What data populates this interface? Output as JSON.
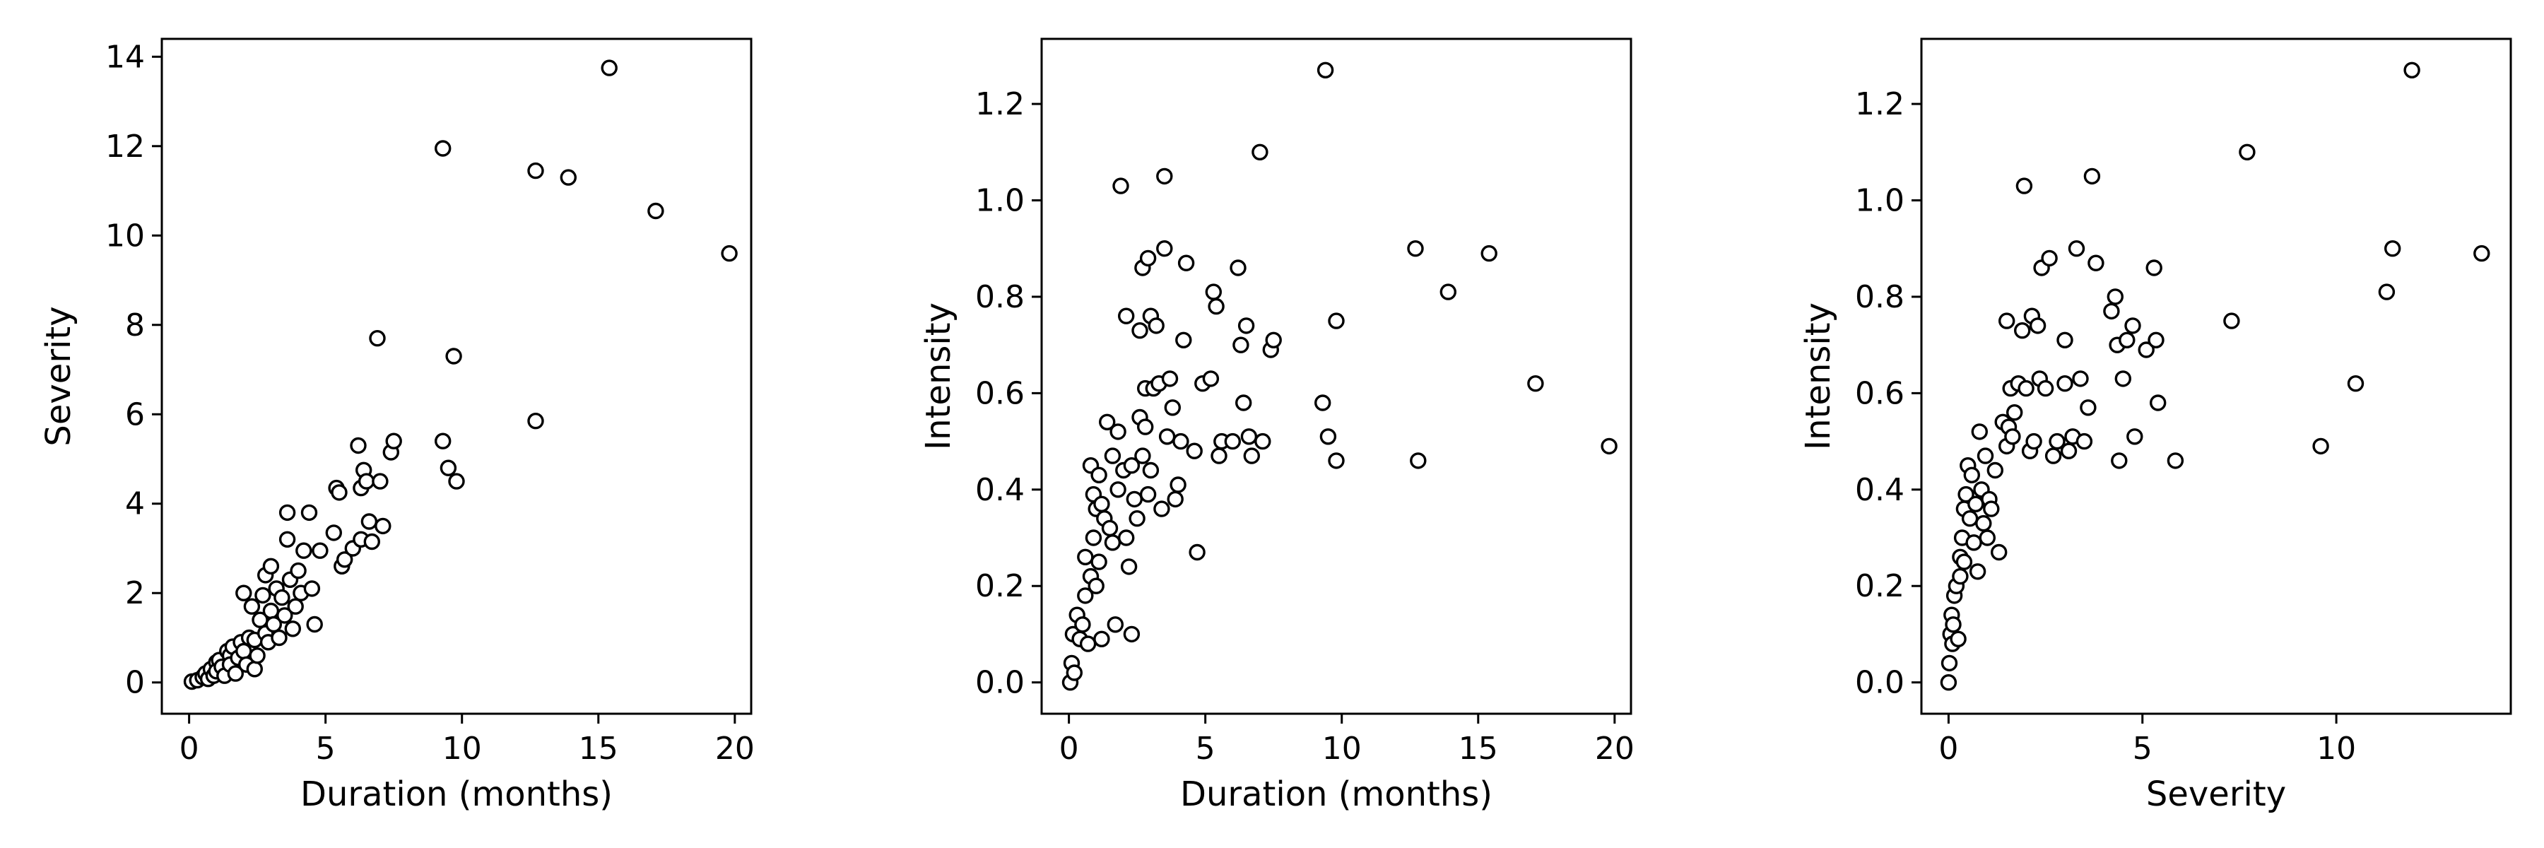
{
  "colors": {
    "marker_edge": "#000000",
    "marker_face": "#ffffff",
    "background": "#ffffff"
  },
  "chart_data": [
    {
      "type": "scatter",
      "title": "",
      "xlabel": "Duration (months)",
      "ylabel": "Severity",
      "xlim": [
        -1,
        20.6
      ],
      "ylim": [
        -0.7,
        14.4
      ],
      "xticks": [
        0,
        5,
        10,
        15,
        20
      ],
      "yticks": [
        0,
        2,
        4,
        6,
        8,
        10,
        12,
        14
      ],
      "grid": false,
      "points": [
        [
          0.1,
          0.02
        ],
        [
          0.3,
          0.05
        ],
        [
          0.5,
          0.12
        ],
        [
          0.6,
          0.2
        ],
        [
          0.7,
          0.08
        ],
        [
          0.8,
          0.3
        ],
        [
          0.9,
          0.15
        ],
        [
          1.0,
          0.45
        ],
        [
          1.0,
          0.25
        ],
        [
          1.1,
          0.5
        ],
        [
          1.2,
          0.35
        ],
        [
          1.3,
          0.15
        ],
        [
          1.4,
          0.7
        ],
        [
          1.5,
          0.6
        ],
        [
          1.5,
          0.4
        ],
        [
          1.6,
          0.8
        ],
        [
          1.7,
          0.2
        ],
        [
          1.8,
          0.55
        ],
        [
          1.9,
          0.9
        ],
        [
          2.0,
          2.0
        ],
        [
          2.0,
          0.7
        ],
        [
          2.1,
          0.4
        ],
        [
          2.2,
          1.0
        ],
        [
          2.3,
          1.7
        ],
        [
          2.4,
          0.3
        ],
        [
          2.4,
          0.95
        ],
        [
          2.5,
          0.6
        ],
        [
          2.6,
          1.4
        ],
        [
          2.7,
          1.95
        ],
        [
          2.8,
          1.1
        ],
        [
          2.8,
          2.4
        ],
        [
          2.9,
          0.9
        ],
        [
          3.0,
          1.6
        ],
        [
          3.0,
          2.6
        ],
        [
          3.1,
          1.3
        ],
        [
          3.2,
          2.1
        ],
        [
          3.3,
          1.0
        ],
        [
          3.4,
          1.9
        ],
        [
          3.5,
          1.5
        ],
        [
          3.6,
          3.2
        ],
        [
          3.6,
          3.8
        ],
        [
          3.7,
          2.3
        ],
        [
          3.8,
          1.2
        ],
        [
          3.9,
          1.7
        ],
        [
          4.0,
          2.5
        ],
        [
          4.1,
          2.0
        ],
        [
          4.2,
          2.95
        ],
        [
          4.4,
          3.8
        ],
        [
          4.5,
          2.1
        ],
        [
          4.6,
          1.3
        ],
        [
          4.8,
          2.95
        ],
        [
          5.3,
          3.35
        ],
        [
          5.4,
          4.35
        ],
        [
          5.5,
          4.25
        ],
        [
          5.6,
          2.6
        ],
        [
          5.7,
          2.75
        ],
        [
          6.0,
          3.0
        ],
        [
          6.2,
          5.3
        ],
        [
          6.3,
          4.35
        ],
        [
          6.3,
          3.2
        ],
        [
          6.4,
          4.75
        ],
        [
          6.5,
          4.5
        ],
        [
          6.6,
          3.6
        ],
        [
          6.7,
          3.15
        ],
        [
          6.9,
          7.7
        ],
        [
          7.0,
          4.5
        ],
        [
          7.1,
          3.5
        ],
        [
          7.4,
          5.15
        ],
        [
          7.5,
          5.4
        ],
        [
          9.3,
          11.95
        ],
        [
          9.3,
          5.4
        ],
        [
          9.5,
          4.8
        ],
        [
          9.7,
          7.3
        ],
        [
          9.8,
          4.5
        ],
        [
          12.7,
          11.45
        ],
        [
          12.7,
          5.85
        ],
        [
          13.9,
          11.3
        ],
        [
          15.4,
          13.75
        ],
        [
          17.1,
          10.55
        ],
        [
          19.8,
          9.6
        ]
      ]
    },
    {
      "type": "scatter",
      "title": "",
      "xlabel": "Duration (months)",
      "ylabel": "Intensity",
      "xlim": [
        -1,
        20.6
      ],
      "ylim": [
        -0.065,
        1.335
      ],
      "xticks": [
        0,
        5,
        10,
        15,
        20
      ],
      "yticks": [
        0.0,
        0.2,
        0.4,
        0.6,
        0.8,
        1.0,
        1.2
      ],
      "grid": false,
      "points": [
        [
          0.05,
          0.0
        ],
        [
          0.1,
          0.04
        ],
        [
          0.15,
          0.1
        ],
        [
          0.2,
          0.02
        ],
        [
          0.3,
          0.14
        ],
        [
          0.4,
          0.09
        ],
        [
          0.5,
          0.12
        ],
        [
          0.6,
          0.18
        ],
        [
          0.6,
          0.26
        ],
        [
          0.7,
          0.08
        ],
        [
          0.8,
          0.22
        ],
        [
          0.8,
          0.45
        ],
        [
          0.9,
          0.39
        ],
        [
          0.9,
          0.3
        ],
        [
          1.0,
          0.36
        ],
        [
          1.0,
          0.2
        ],
        [
          1.1,
          0.43
        ],
        [
          1.1,
          0.25
        ],
        [
          1.2,
          0.37
        ],
        [
          1.2,
          0.09
        ],
        [
          1.3,
          0.34
        ],
        [
          1.4,
          0.54
        ],
        [
          1.5,
          0.32
        ],
        [
          1.6,
          0.47
        ],
        [
          1.6,
          0.29
        ],
        [
          1.7,
          0.12
        ],
        [
          1.8,
          0.52
        ],
        [
          1.8,
          0.4
        ],
        [
          1.9,
          1.03
        ],
        [
          2.0,
          0.44
        ],
        [
          2.1,
          0.76
        ],
        [
          2.1,
          0.3
        ],
        [
          2.2,
          0.24
        ],
        [
          2.3,
          0.1
        ],
        [
          2.3,
          0.45
        ],
        [
          2.4,
          0.38
        ],
        [
          2.5,
          0.34
        ],
        [
          2.6,
          0.73
        ],
        [
          2.6,
          0.55
        ],
        [
          2.7,
          0.86
        ],
        [
          2.7,
          0.47
        ],
        [
          2.8,
          0.53
        ],
        [
          2.8,
          0.61
        ],
        [
          2.9,
          0.88
        ],
        [
          2.9,
          0.39
        ],
        [
          3.0,
          0.76
        ],
        [
          3.0,
          0.44
        ],
        [
          3.1,
          0.61
        ],
        [
          3.2,
          0.74
        ],
        [
          3.3,
          0.62
        ],
        [
          3.4,
          0.36
        ],
        [
          3.5,
          0.9
        ],
        [
          3.5,
          1.05
        ],
        [
          3.6,
          0.51
        ],
        [
          3.7,
          0.63
        ],
        [
          3.8,
          0.57
        ],
        [
          3.9,
          0.38
        ],
        [
          4.0,
          0.41
        ],
        [
          4.1,
          0.5
        ],
        [
          4.2,
          0.71
        ],
        [
          4.3,
          0.87
        ],
        [
          4.6,
          0.48
        ],
        [
          4.7,
          0.27
        ],
        [
          4.9,
          0.62
        ],
        [
          5.2,
          0.63
        ],
        [
          5.3,
          0.81
        ],
        [
          5.4,
          0.78
        ],
        [
          5.5,
          0.47
        ],
        [
          5.6,
          0.5
        ],
        [
          6.0,
          0.5
        ],
        [
          6.2,
          0.86
        ],
        [
          6.3,
          0.7
        ],
        [
          6.4,
          0.58
        ],
        [
          6.5,
          0.74
        ],
        [
          6.6,
          0.51
        ],
        [
          6.7,
          0.47
        ],
        [
          7.0,
          1.1
        ],
        [
          7.1,
          0.5
        ],
        [
          7.4,
          0.69
        ],
        [
          7.5,
          0.71
        ],
        [
          9.3,
          0.58
        ],
        [
          9.4,
          1.27
        ],
        [
          9.5,
          0.51
        ],
        [
          9.8,
          0.75
        ],
        [
          9.8,
          0.46
        ],
        [
          12.7,
          0.9
        ],
        [
          12.8,
          0.46
        ],
        [
          13.9,
          0.81
        ],
        [
          15.4,
          0.89
        ],
        [
          17.1,
          0.62
        ],
        [
          19.8,
          0.49
        ]
      ]
    },
    {
      "type": "scatter",
      "title": "",
      "xlabel": "Severity",
      "ylabel": "Intensity",
      "xlim": [
        -0.7,
        14.5
      ],
      "ylim": [
        -0.065,
        1.335
      ],
      "xticks": [
        0,
        5,
        10
      ],
      "yticks": [
        0.0,
        0.2,
        0.4,
        0.6,
        0.8,
        1.0,
        1.2
      ],
      "grid": false,
      "points": [
        [
          0.0,
          0.0
        ],
        [
          0.02,
          0.04
        ],
        [
          0.05,
          0.1
        ],
        [
          0.08,
          0.14
        ],
        [
          0.1,
          0.08
        ],
        [
          0.12,
          0.12
        ],
        [
          0.15,
          0.18
        ],
        [
          0.2,
          0.2
        ],
        [
          0.25,
          0.09
        ],
        [
          0.3,
          0.22
        ],
        [
          0.3,
          0.26
        ],
        [
          0.35,
          0.3
        ],
        [
          0.4,
          0.25
        ],
        [
          0.4,
          0.36
        ],
        [
          0.45,
          0.39
        ],
        [
          0.5,
          0.45
        ],
        [
          0.55,
          0.34
        ],
        [
          0.6,
          0.43
        ],
        [
          0.65,
          0.29
        ],
        [
          0.7,
          0.37
        ],
        [
          0.75,
          0.23
        ],
        [
          0.8,
          0.52
        ],
        [
          0.85,
          0.4
        ],
        [
          0.9,
          0.33
        ],
        [
          0.95,
          0.47
        ],
        [
          1.0,
          0.3
        ],
        [
          1.05,
          0.38
        ],
        [
          1.1,
          0.36
        ],
        [
          1.2,
          0.44
        ],
        [
          1.3,
          0.27
        ],
        [
          1.4,
          0.54
        ],
        [
          1.5,
          0.49
        ],
        [
          1.5,
          0.75
        ],
        [
          1.55,
          0.53
        ],
        [
          1.6,
          0.61
        ],
        [
          1.65,
          0.51
        ],
        [
          1.7,
          0.56
        ],
        [
          1.8,
          0.62
        ],
        [
          1.9,
          0.73
        ],
        [
          1.95,
          1.03
        ],
        [
          2.0,
          0.61
        ],
        [
          2.1,
          0.48
        ],
        [
          2.15,
          0.76
        ],
        [
          2.2,
          0.5
        ],
        [
          2.3,
          0.74
        ],
        [
          2.35,
          0.63
        ],
        [
          2.4,
          0.86
        ],
        [
          2.5,
          0.61
        ],
        [
          2.6,
          0.88
        ],
        [
          2.7,
          0.47
        ],
        [
          2.8,
          0.5
        ],
        [
          3.0,
          0.71
        ],
        [
          3.0,
          0.62
        ],
        [
          3.1,
          0.48
        ],
        [
          3.2,
          0.51
        ],
        [
          3.3,
          0.9
        ],
        [
          3.4,
          0.63
        ],
        [
          3.5,
          0.5
        ],
        [
          3.6,
          0.57
        ],
        [
          3.7,
          1.05
        ],
        [
          3.8,
          0.87
        ],
        [
          4.2,
          0.77
        ],
        [
          4.3,
          0.8
        ],
        [
          4.35,
          0.7
        ],
        [
          4.4,
          0.46
        ],
        [
          4.5,
          0.63
        ],
        [
          4.6,
          0.71
        ],
        [
          4.75,
          0.74
        ],
        [
          4.8,
          0.51
        ],
        [
          5.1,
          0.69
        ],
        [
          5.3,
          0.86
        ],
        [
          5.35,
          0.71
        ],
        [
          5.4,
          0.58
        ],
        [
          5.85,
          0.46
        ],
        [
          7.3,
          0.75
        ],
        [
          7.7,
          1.1
        ],
        [
          9.6,
          0.49
        ],
        [
          10.5,
          0.62
        ],
        [
          11.3,
          0.81
        ],
        [
          11.45,
          0.9
        ],
        [
          11.95,
          1.27
        ],
        [
          13.75,
          0.89
        ]
      ]
    }
  ]
}
